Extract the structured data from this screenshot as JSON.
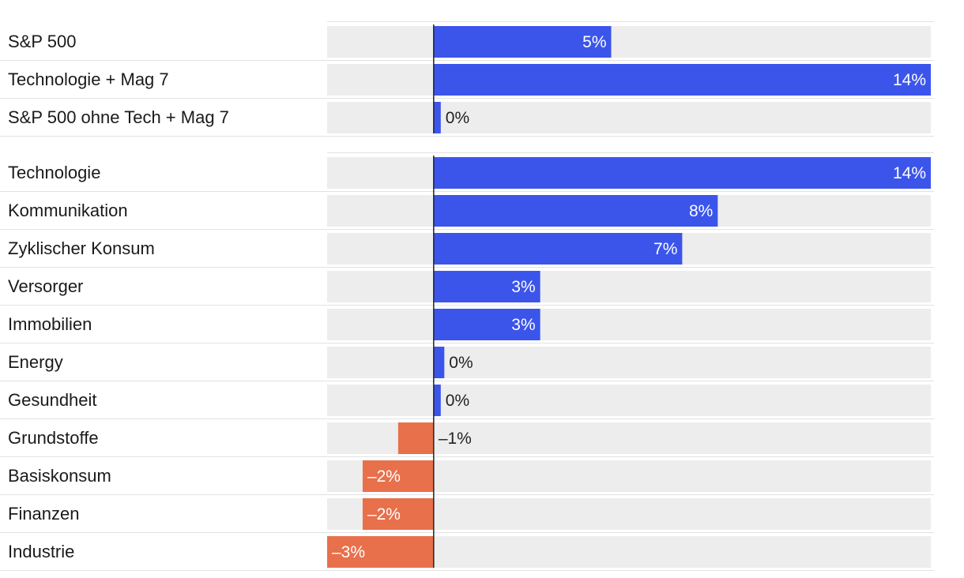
{
  "chart_data": {
    "type": "bar",
    "orientation": "horizontal",
    "xlim": [
      -3,
      14
    ],
    "value_suffix": "%",
    "colors": {
      "positive": "#3b55eb",
      "negative": "#e8704b",
      "track": "#ededed",
      "separator": "#e2e2e2",
      "zero_line": "#1f2430",
      "label": "#1a1a1a",
      "value_inside": "#ffffff",
      "value_outside": "#222222"
    },
    "groups": [
      {
        "name": "benchmarks",
        "categories": [
          "S&P 500",
          "Technologie + Mag 7",
          "S&P 500 ohne Tech + Mag 7"
        ],
        "values": [
          5,
          14,
          0.2
        ],
        "value_labels": [
          "5%",
          "14%",
          "0%"
        ]
      },
      {
        "name": "sectors",
        "categories": [
          "Technologie",
          "Kommunikation",
          "Zyklischer Konsum",
          "Versorger",
          "Immobilien",
          "Energy",
          "Gesundheit",
          "Grundstoffe",
          "Basiskonsum",
          "Finanzen",
          "Industrie"
        ],
        "values": [
          14,
          8,
          7,
          3,
          3,
          0.3,
          0.2,
          -1,
          -2,
          -2,
          -3
        ],
        "value_labels": [
          "14%",
          "8%",
          "7%",
          "3%",
          "3%",
          "0%",
          "0%",
          "–1%",
          "–2%",
          "–2%",
          "–3%"
        ]
      }
    ]
  }
}
